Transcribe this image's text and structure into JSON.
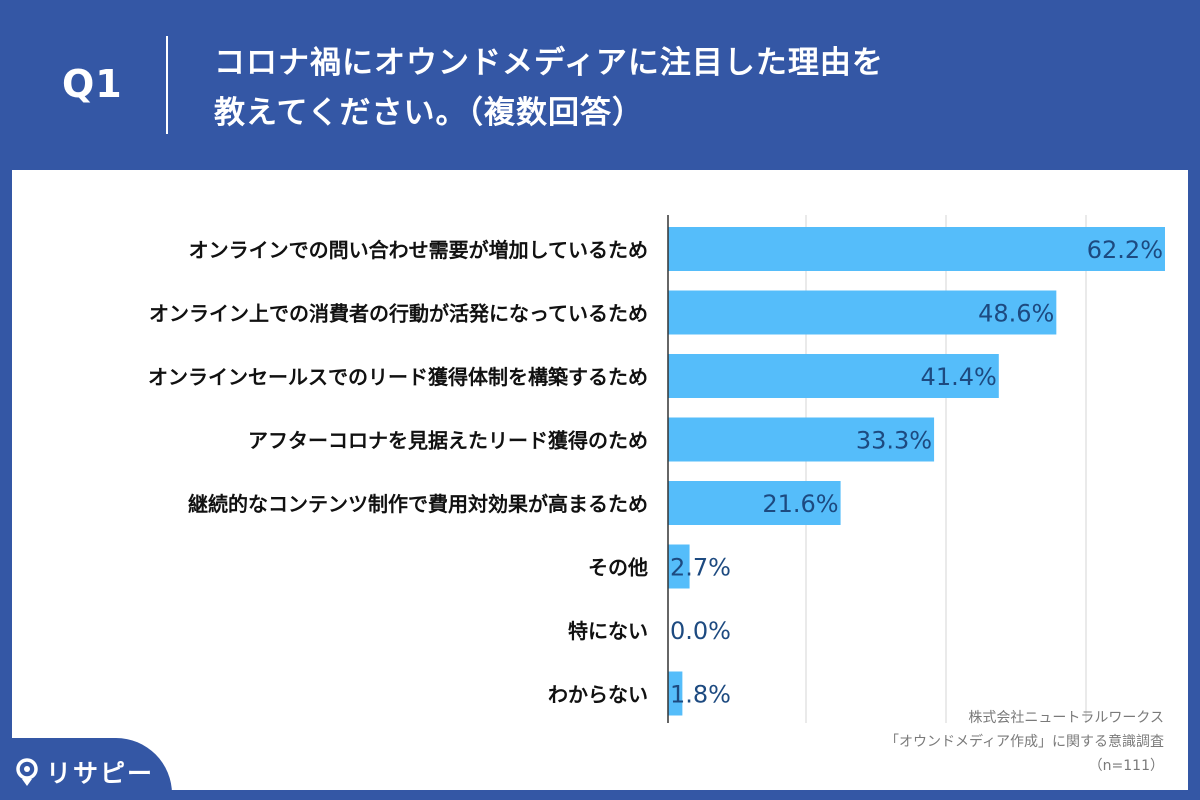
{
  "header": {
    "q_label": "Q1",
    "title_line1": "コロナ禍にオウンドメディアに注目した理由を",
    "title_line2": "教えてください。（複数回答）"
  },
  "colors": {
    "background": "#3457a5",
    "bar": "#55bdfa",
    "value_text": "#1d4a80",
    "label_text": "#111111",
    "grid": "#d4d4d4",
    "axis": "#333333"
  },
  "chart_data": {
    "type": "bar",
    "orientation": "horizontal",
    "title": "コロナ禍にオウンドメディアに注目した理由を教えてください。（複数回答）",
    "categories": [
      "オンラインでの問い合わせ需要が増加しているため",
      "オンライン上での消費者の行動が活発になっているため",
      "オンラインセールスでのリード獲得体制を構築するため",
      "アフターコロナを見据えたリード獲得のため",
      "継続的なコンテンツ制作で費用対効果が高まるため",
      "その他",
      "特にない",
      "わからない"
    ],
    "values": [
      62.2,
      48.6,
      41.4,
      33.3,
      21.6,
      2.7,
      0.0,
      1.8
    ],
    "value_labels": [
      "62.2%",
      "48.6%",
      "41.4%",
      "33.3%",
      "21.6%",
      "2.7%",
      "0.0%",
      "1.8%"
    ],
    "xlim": [
      0,
      62.2
    ],
    "grid": true,
    "xlabel": "",
    "ylabel": ""
  },
  "source": {
    "line1": "株式会社ニュートラルワークス",
    "line2": "「オウンドメディア作成」に関する意識調査",
    "line3": "（n=111）"
  },
  "logo": {
    "text": "リサピー",
    "icon": "pin-icon"
  }
}
